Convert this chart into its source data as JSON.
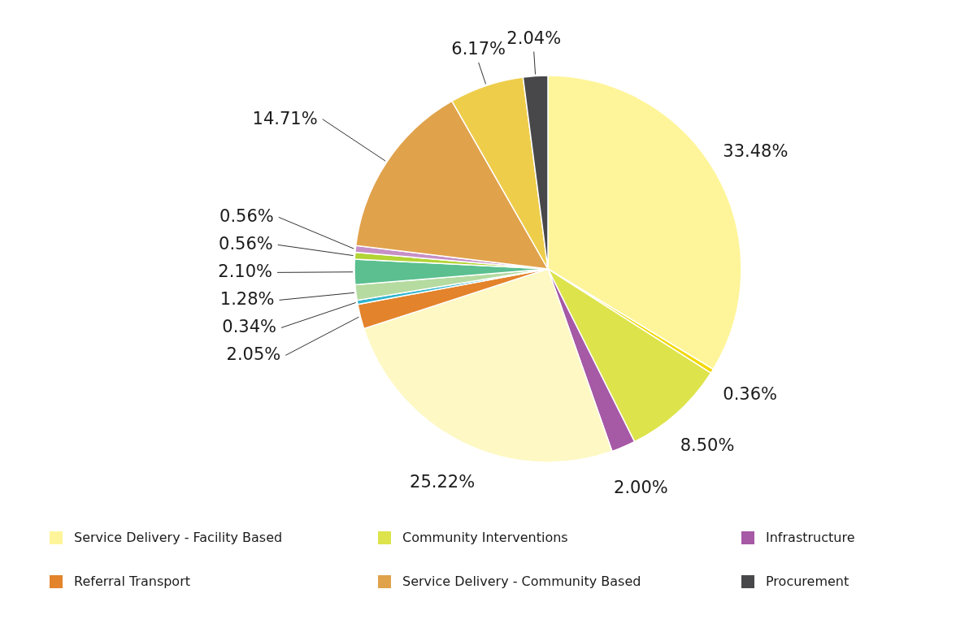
{
  "chart_data": {
    "type": "pie",
    "categories": [
      "Service Delivery - Facility Based",
      null,
      "Community Interventions",
      "Infrastructure",
      null,
      "Referral Transport",
      null,
      null,
      null,
      null,
      null,
      "Service Delivery - Community Based",
      null,
      "Procurement"
    ],
    "values": [
      33.48,
      0.36,
      8.5,
      2.0,
      25.22,
      2.05,
      0.34,
      1.28,
      2.1,
      0.56,
      0.56,
      14.71,
      6.17,
      2.04
    ],
    "colors": [
      "#fef59a",
      "#f2d800",
      "#dde34b",
      "#a659a5",
      "#fef8c4",
      "#e3832b",
      "#2fb5cf",
      "#b5dba1",
      "#5bbf8f",
      "#b2d435",
      "#c690c7",
      "#e0a24b",
      "#eecd4b",
      "#48484b"
    ],
    "value_labels": [
      "33.48%",
      "0.36%",
      "8.50%",
      "2.00%",
      "25.22%",
      "2.05%",
      "0.34%",
      "1.28%",
      "2.10%",
      "0.56%",
      "0.56%",
      "14.71%",
      "6.17%",
      "2.04%"
    ],
    "legend": "bottom"
  }
}
